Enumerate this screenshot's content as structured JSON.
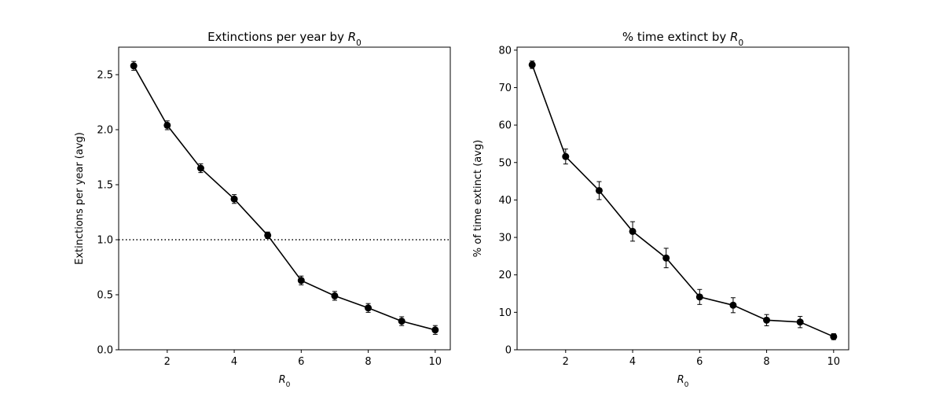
{
  "chart_data": [
    {
      "type": "line",
      "title": "Extinctions per year by ",
      "title_symbol": "R",
      "title_subscript": "0",
      "xlabel_symbol": "R",
      "xlabel_subscript": "0",
      "ylabel": "Extinctions per year (avg)",
      "xlim": [
        0.55,
        10.45
      ],
      "ylim": [
        0,
        2.75
      ],
      "xticks": [
        2,
        4,
        6,
        8,
        10
      ],
      "yticks": [
        0.0,
        0.5,
        1.0,
        1.5,
        2.0,
        2.5
      ],
      "ytick_labels": [
        "0.0",
        "0.5",
        "1.0",
        "1.5",
        "2.0",
        "2.5"
      ],
      "x": [
        1,
        2,
        3,
        4,
        5,
        6,
        7,
        8,
        9,
        10
      ],
      "y": [
        2.58,
        2.04,
        1.65,
        1.37,
        1.04,
        0.63,
        0.49,
        0.38,
        0.26,
        0.18
      ],
      "yerr": [
        0.04,
        0.04,
        0.04,
        0.04,
        0.03,
        0.04,
        0.04,
        0.04,
        0.04,
        0.04
      ],
      "reference_line": {
        "y": 1.0,
        "style": "dotted"
      },
      "color": "#000000",
      "grid": false
    },
    {
      "type": "line",
      "title": "% time extinct by ",
      "title_symbol": "R",
      "title_subscript": "0",
      "xlabel_symbol": "R",
      "xlabel_subscript": "0",
      "ylabel": "% of time extinct (avg)",
      "xlim": [
        0.55,
        10.45
      ],
      "ylim": [
        0,
        80.8
      ],
      "xticks": [
        2,
        4,
        6,
        8,
        10
      ],
      "yticks": [
        0,
        10,
        20,
        30,
        40,
        50,
        60,
        70,
        80
      ],
      "ytick_labels": [
        "0",
        "10",
        "20",
        "30",
        "40",
        "50",
        "60",
        "70",
        "80"
      ],
      "x": [
        1,
        2,
        3,
        4,
        5,
        6,
        7,
        8,
        9,
        10
      ],
      "y": [
        76.1,
        51.6,
        42.5,
        31.6,
        24.5,
        14.1,
        11.9,
        7.9,
        7.4,
        3.5
      ],
      "yerr": [
        1.0,
        2.0,
        2.4,
        2.6,
        2.6,
        2.0,
        2.0,
        1.5,
        1.5,
        0.8
      ],
      "color": "#000000",
      "grid": false
    }
  ]
}
